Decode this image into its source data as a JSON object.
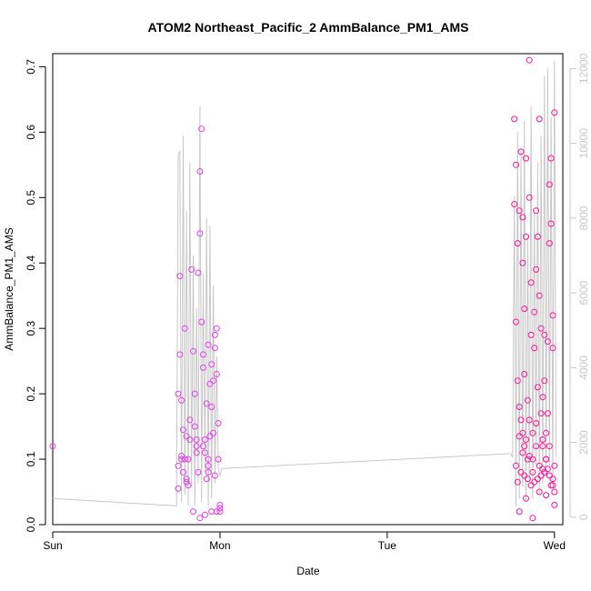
{
  "chart_data": {
    "type": "scatter",
    "title": "ATOM2 Northeast_Pacific_2 AmmBalance_PM1_AMS",
    "xlabel": "Date",
    "ylabel": "AmmBalance_PM1_AMS",
    "x_tick_labels": [
      "Sun",
      "Mon",
      "Tue",
      "Wed"
    ],
    "x_tick_days": [
      0,
      1,
      2,
      3
    ],
    "xlim": [
      0,
      3.05
    ],
    "ylim": [
      0,
      0.72
    ],
    "y_ticks": [
      0.0,
      0.1,
      0.2,
      0.3,
      0.4,
      0.5,
      0.6,
      0.7
    ],
    "y_tick_labels": [
      "0.0",
      "0.1",
      "0.2",
      "0.3",
      "0.4",
      "0.5",
      "0.6",
      "0.7"
    ],
    "y2lim": [
      -200,
      12400
    ],
    "y2_ticks": [
      0,
      2000,
      4000,
      6000,
      8000,
      10000,
      12000
    ],
    "y2_tick_labels": [
      "0",
      "2000",
      "4000",
      "6000",
      "8000",
      "10000",
      "12000"
    ],
    "grid": false,
    "legend": "none",
    "colors": {
      "points_early": "#e040e8",
      "points_late": "#ff1493",
      "line": "#c8c8c8",
      "axis": "#000000",
      "axis_right": "#c8c8c8"
    },
    "series": [
      {
        "kind": "points",
        "axis": "left",
        "x": [
          0.0,
          0.75,
          0.75,
          0.75,
          0.76,
          0.76,
          0.77,
          0.77,
          0.78,
          0.78,
          0.79,
          0.79,
          0.8,
          0.8,
          0.81,
          0.81,
          0.82,
          0.83,
          0.84,
          0.85,
          0.85,
          0.86,
          0.86,
          0.87,
          0.87,
          0.88,
          0.88,
          0.89,
          0.89,
          0.9,
          0.9,
          0.91,
          0.91,
          0.92,
          0.92,
          0.93,
          0.93,
          0.93,
          0.94,
          0.94,
          0.95,
          0.95,
          0.96,
          0.96,
          0.97,
          0.97,
          0.98,
          0.98,
          0.99,
          0.99,
          1.0,
          1.0,
          1.0,
          0.77,
          0.8,
          0.84,
          0.88,
          0.91,
          0.95,
          0.98,
          0.82,
          0.86,
          0.9,
          0.93,
          0.97
        ],
        "y": [
          0.12,
          0.09,
          0.055,
          0.2,
          0.26,
          0.38,
          0.1,
          0.19,
          0.08,
          0.145,
          0.3,
          0.1,
          0.07,
          0.135,
          0.1,
          0.06,
          0.13,
          0.39,
          0.265,
          0.15,
          0.2,
          0.11,
          0.12,
          0.08,
          0.385,
          0.445,
          0.54,
          0.605,
          0.31,
          0.26,
          0.24,
          0.13,
          0.11,
          0.07,
          0.185,
          0.275,
          0.1,
          0.08,
          0.135,
          0.215,
          0.245,
          0.18,
          0.14,
          0.22,
          0.27,
          0.29,
          0.23,
          0.3,
          0.155,
          0.1,
          0.02,
          0.025,
          0.03,
          0.105,
          0.065,
          0.02,
          0.01,
          0.015,
          0.02,
          0.02,
          0.16,
          0.13,
          0.12,
          0.09,
          0.075
        ]
      },
      {
        "kind": "points",
        "axis": "left",
        "x": [
          2.76,
          2.76,
          2.77,
          2.77,
          2.78,
          2.78,
          2.79,
          2.79,
          2.8,
          2.8,
          2.81,
          2.81,
          2.82,
          2.82,
          2.82,
          2.83,
          2.83,
          2.84,
          2.84,
          2.85,
          2.85,
          2.86,
          2.86,
          2.87,
          2.87,
          2.88,
          2.88,
          2.89,
          2.89,
          2.9,
          2.9,
          2.91,
          2.91,
          2.92,
          2.92,
          2.93,
          2.93,
          2.94,
          2.94,
          2.95,
          2.95,
          2.96,
          2.96,
          2.97,
          2.97,
          2.98,
          2.98,
          2.99,
          2.99,
          3.0,
          3.0,
          3.0,
          2.77,
          2.79,
          2.81,
          2.83,
          2.85,
          2.87,
          2.89,
          2.91,
          2.93,
          2.95,
          2.97,
          2.99,
          2.78,
          2.8,
          2.82,
          2.84,
          2.86,
          2.88,
          2.9,
          2.92,
          2.94,
          2.96,
          2.98,
          3.0,
          2.79,
          2.83,
          2.87,
          2.91,
          2.95,
          2.99,
          2.81,
          2.85,
          2.89,
          2.93,
          2.97
        ],
        "y": [
          0.62,
          0.49,
          0.31,
          0.55,
          0.43,
          0.22,
          0.18,
          0.48,
          0.16,
          0.57,
          0.47,
          0.4,
          0.33,
          0.23,
          0.12,
          0.56,
          0.44,
          0.19,
          0.1,
          0.71,
          0.5,
          0.37,
          0.29,
          0.14,
          0.08,
          0.325,
          0.27,
          0.48,
          0.39,
          0.44,
          0.21,
          0.62,
          0.35,
          0.3,
          0.17,
          0.195,
          0.12,
          0.29,
          0.22,
          0.14,
          0.1,
          0.28,
          0.17,
          0.52,
          0.43,
          0.56,
          0.46,
          0.32,
          0.27,
          0.63,
          0.09,
          0.05,
          0.09,
          0.135,
          0.11,
          0.13,
          0.105,
          0.1,
          0.12,
          0.09,
          0.085,
          0.1,
          0.075,
          0.07,
          0.065,
          0.08,
          0.075,
          0.07,
          0.06,
          0.065,
          0.07,
          0.075,
          0.08,
          0.085,
          0.06,
          0.03,
          0.02,
          0.04,
          0.01,
          0.05,
          0.045,
          0.06,
          0.14,
          0.16,
          0.155,
          0.13,
          0.12
        ]
      },
      {
        "kind": "line",
        "axis": "right",
        "x": [
          0.0,
          0.74,
          0.75,
          0.76,
          0.77,
          0.78,
          0.79,
          0.8,
          0.81,
          0.82,
          0.83,
          0.84,
          0.85,
          0.86,
          0.87,
          0.88,
          0.89,
          0.9,
          0.91,
          0.92,
          0.93,
          0.94,
          0.95,
          0.96,
          0.97,
          0.98,
          0.99,
          1.0,
          1.01,
          2.74,
          2.75,
          2.76,
          2.77,
          2.78,
          2.79,
          2.8,
          2.81,
          2.82,
          2.83,
          2.84,
          2.85,
          2.86,
          2.87,
          2.88,
          2.89,
          2.9,
          2.91,
          2.92,
          2.93,
          2.94,
          2.95,
          2.96,
          2.97,
          2.98,
          2.99,
          3.0,
          3.01
        ],
        "y": [
          500,
          300,
          9700,
          9800,
          400,
          10200,
          600,
          8200,
          300,
          9500,
          800,
          7000,
          300,
          5600,
          900,
          11000,
          400,
          6500,
          1200,
          8000,
          300,
          7800,
          500,
          6200,
          900,
          4300,
          1300,
          1100,
          1300,
          1700,
          1600,
          8600,
          300,
          10300,
          500,
          9800,
          800,
          10600,
          400,
          7500,
          900,
          11000,
          500,
          8200,
          1400,
          9500,
          600,
          10200,
          900,
          11800,
          1100,
          12000,
          1300,
          10700,
          900,
          12200,
          1600
        ]
      }
    ]
  }
}
